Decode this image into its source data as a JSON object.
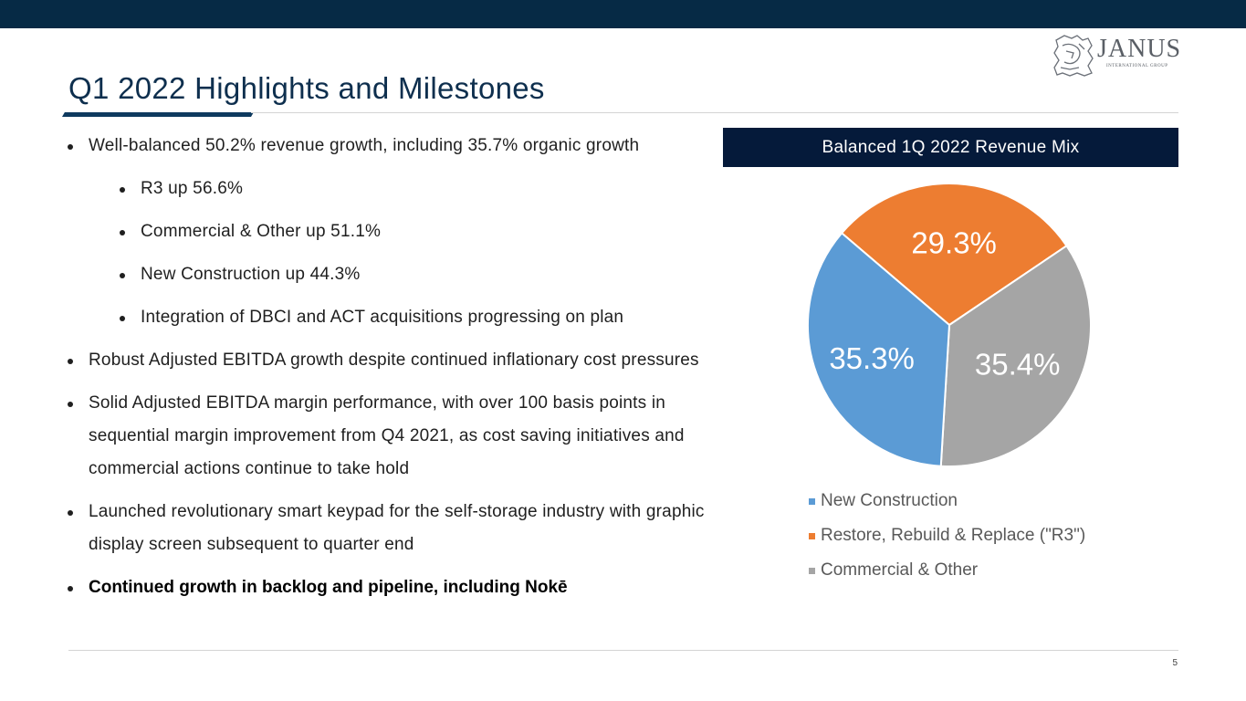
{
  "header": {
    "title": "Q1 2022 Highlights and Milestones",
    "logo": {
      "name": "JANUS",
      "tagline": "INTERNATIONAL GROUP"
    }
  },
  "bullets": [
    {
      "level": 1,
      "bold": false,
      "text": "Well-balanced 50.2% revenue growth, including 35.7% organic growth"
    },
    {
      "level": 2,
      "bold": false,
      "text": "R3 up 56.6%"
    },
    {
      "level": 2,
      "bold": false,
      "text": "Commercial & Other up 51.1%"
    },
    {
      "level": 2,
      "bold": false,
      "text": "New Construction up 44.3%"
    },
    {
      "level": 2,
      "bold": false,
      "text": "Integration of DBCI and ACT acquisitions progressing on plan"
    },
    {
      "level": 1,
      "bold": false,
      "text": "Robust Adjusted EBITDA growth despite continued inflationary cost pressures"
    },
    {
      "level": 1,
      "bold": false,
      "text": "Solid Adjusted EBITDA margin performance, with over 100 basis points in sequential margin improvement from Q4 2021, as cost saving initiatives and commercial actions continue to take hold"
    },
    {
      "level": 1,
      "bold": false,
      "text": "Launched revolutionary smart keypad for the self-storage industry with graphic display screen subsequent to quarter end"
    },
    {
      "level": 1,
      "bold": true,
      "text": "Continued growth in backlog and pipeline, including Nokē"
    }
  ],
  "chart_data": {
    "type": "pie",
    "title": "Balanced 1Q 2022 Revenue Mix",
    "categories": [
      "New Construction",
      "Restore, Rebuild & Replace (\"R3\")",
      "Commercial & Other"
    ],
    "values": [
      35.3,
      29.3,
      35.4
    ],
    "labels": [
      "35.3%",
      "29.3%",
      "35.4%"
    ],
    "colors": [
      "#5b9bd5",
      "#ed7d31",
      "#a5a5a5"
    ],
    "legend_position": "bottom-left"
  },
  "footer": {
    "page_number": "5"
  }
}
